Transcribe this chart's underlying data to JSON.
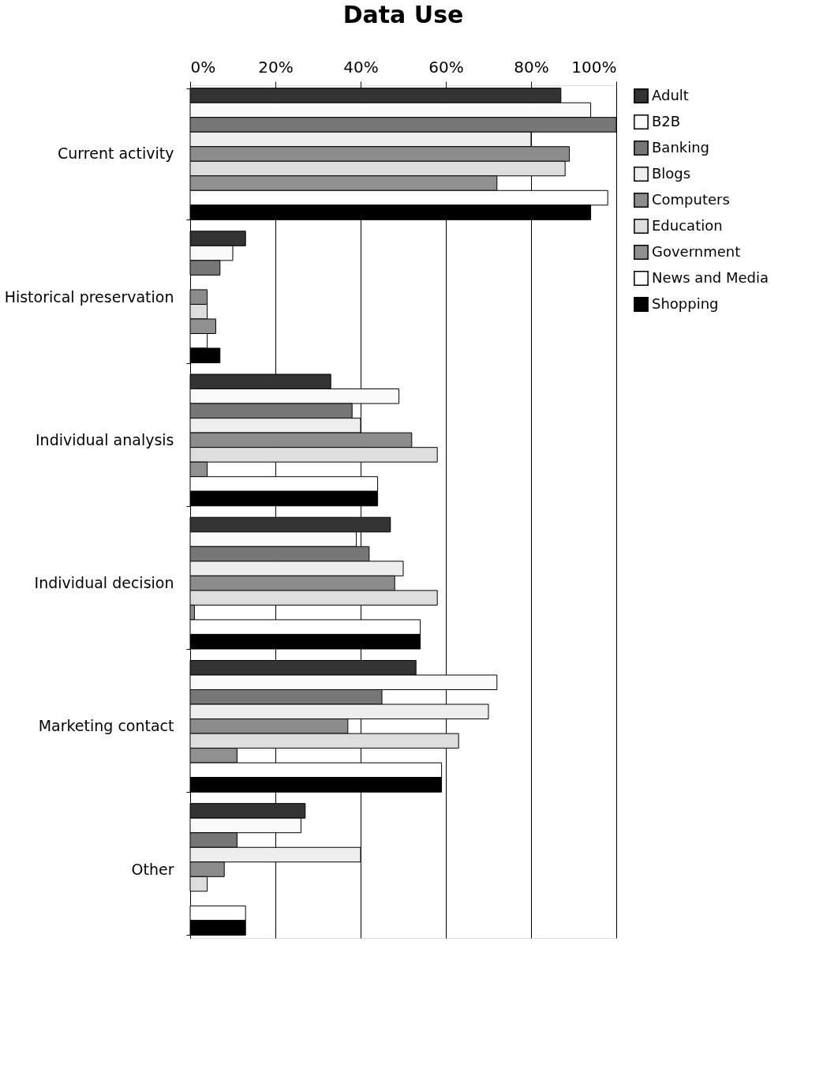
{
  "chart_data": {
    "type": "bar",
    "orientation": "horizontal",
    "title": "Data Use",
    "categories": [
      "Current activity",
      "Historical preservation",
      "Individual analysis",
      "Individual decision",
      "Marketing contact",
      "Other"
    ],
    "series": [
      {
        "name": "Adult",
        "color": "#333333",
        "values": [
          87,
          13,
          33,
          47,
          53,
          27
        ]
      },
      {
        "name": "B2B",
        "color": "#fafafa",
        "values": [
          94,
          10,
          49,
          39,
          72,
          26
        ]
      },
      {
        "name": "Banking",
        "color": "#777777",
        "values": [
          100,
          7,
          38,
          42,
          45,
          11
        ]
      },
      {
        "name": "Blogs",
        "color": "#eeeeee",
        "values": [
          80,
          null,
          40,
          50,
          70,
          40
        ]
      },
      {
        "name": "Computers",
        "color": "#8c8c8c",
        "values": [
          89,
          4,
          52,
          48,
          37,
          8
        ]
      },
      {
        "name": "Education",
        "color": "#dddddd",
        "values": [
          88,
          4,
          58,
          58,
          63,
          4
        ]
      },
      {
        "name": "Government",
        "color": "#909090",
        "values": [
          72,
          6,
          4,
          1,
          11,
          null
        ]
      },
      {
        "name": "News and Media",
        "color": "#ffffff",
        "values": [
          98,
          4,
          44,
          54,
          59,
          13
        ]
      },
      {
        "name": "Shopping",
        "color": "#000000",
        "values": [
          94,
          7,
          44,
          54,
          59,
          13
        ]
      }
    ],
    "xlim": [
      0,
      100
    ],
    "xticks": [
      {
        "value": 0,
        "label": "0%"
      },
      {
        "value": 20,
        "label": "20%"
      },
      {
        "value": 40,
        "label": "40%"
      },
      {
        "value": 60,
        "label": "60%"
      },
      {
        "value": 80,
        "label": "80%"
      },
      {
        "value": 100,
        "label": "100%"
      }
    ],
    "grid": "x",
    "legend": "right"
  }
}
